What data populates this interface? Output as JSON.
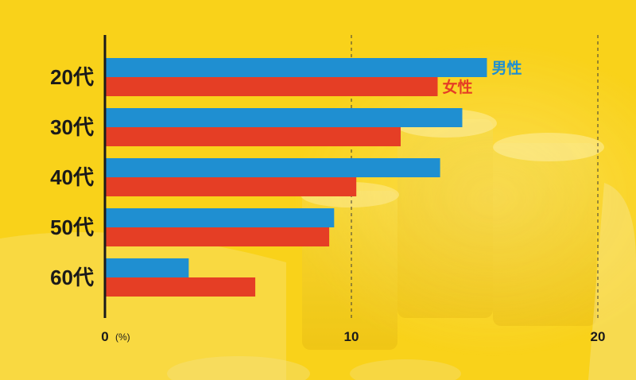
{
  "colors": {
    "background": "#f9d21a",
    "male": "#1f8fd1",
    "female": "#e53e25",
    "axis": "#1a1a1a",
    "grid": "#3a3a3a"
  },
  "chart_data": {
    "type": "bar",
    "orientation": "horizontal",
    "categories": [
      "20代",
      "30代",
      "40代",
      "50代",
      "60代"
    ],
    "series": [
      {
        "name": "男性",
        "values": [
          15.5,
          14.5,
          13.6,
          9.3,
          3.4
        ]
      },
      {
        "name": "女性",
        "values": [
          13.5,
          12.0,
          10.2,
          9.1,
          6.1
        ]
      }
    ],
    "xlim": [
      0,
      20
    ],
    "xticks": [
      0,
      10,
      20
    ],
    "x_unit": "(%)",
    "grid": "dashed vertical at 10 and 20",
    "legend": "series labels placed at the end of the 20代 bars"
  }
}
